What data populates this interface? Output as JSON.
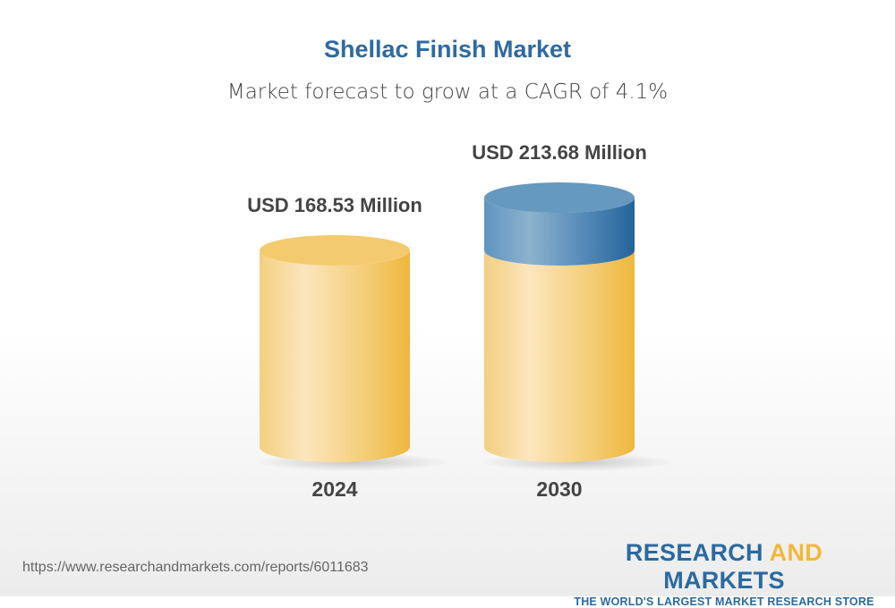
{
  "title": "Shellac Finish Market",
  "subtitle": "Market forecast to grow at a CAGR of 4.1%",
  "chart_data": {
    "type": "bar",
    "style": "3d-cylinder",
    "categories": [
      "2024",
      "2030"
    ],
    "values": [
      168.53,
      213.68
    ],
    "data_labels": [
      "USD 168.53 Million",
      "USD 213.68 Million"
    ],
    "unit": "USD Million",
    "colors": {
      "base": "#f2c25a",
      "growth": "#3f7fb0"
    }
  },
  "footer": {
    "url": "https://www.researchandmarkets.com/reports/6011683",
    "logo_word1": "RESEARCH",
    "logo_word2": "AND",
    "logo_word3": "MARKETS",
    "logo_tagline": "THE WORLD'S LARGEST MARKET RESEARCH STORE"
  }
}
